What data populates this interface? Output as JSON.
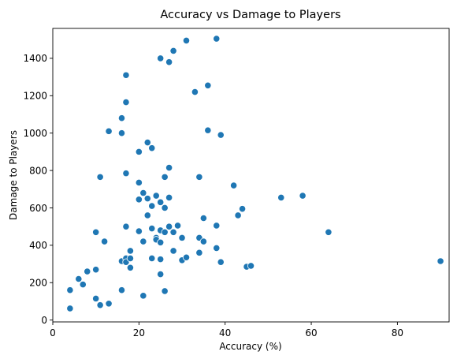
{
  "chart_data": {
    "type": "scatter",
    "title": "Accuracy vs Damage to Players",
    "xlabel": "Accuracy (%)",
    "ylabel": "Damage to Players",
    "xlim": [
      0,
      92
    ],
    "ylim": [
      -10,
      1560
    ],
    "xticks": [
      0,
      20,
      40,
      60,
      80
    ],
    "yticks": [
      0,
      200,
      400,
      600,
      800,
      1000,
      1200,
      1400
    ],
    "grid": false,
    "legend": "none",
    "marker_color": "#1f77b4",
    "points": [
      [
        4,
        160
      ],
      [
        4,
        62
      ],
      [
        6,
        220
      ],
      [
        7,
        190
      ],
      [
        8,
        260
      ],
      [
        10,
        270
      ],
      [
        10,
        115
      ],
      [
        10,
        470
      ],
      [
        11,
        80
      ],
      [
        11,
        765
      ],
      [
        12,
        420
      ],
      [
        13,
        1010
      ],
      [
        13,
        88
      ],
      [
        16,
        1080
      ],
      [
        16,
        1000
      ],
      [
        16,
        315
      ],
      [
        16,
        160
      ],
      [
        17,
        1310
      ],
      [
        17,
        1165
      ],
      [
        17,
        785
      ],
      [
        17,
        500
      ],
      [
        17,
        330
      ],
      [
        17,
        310
      ],
      [
        18,
        370
      ],
      [
        18,
        330
      ],
      [
        18,
        280
      ],
      [
        20,
        900
      ],
      [
        20,
        735
      ],
      [
        20,
        645
      ],
      [
        20,
        475
      ],
      [
        21,
        680
      ],
      [
        21,
        420
      ],
      [
        21,
        130
      ],
      [
        22,
        950
      ],
      [
        22,
        650
      ],
      [
        22,
        560
      ],
      [
        23,
        920
      ],
      [
        23,
        610
      ],
      [
        23,
        490
      ],
      [
        23,
        330
      ],
      [
        24,
        665
      ],
      [
        24,
        440
      ],
      [
        24,
        430
      ],
      [
        25,
        1400
      ],
      [
        25,
        630
      ],
      [
        25,
        480
      ],
      [
        25,
        415
      ],
      [
        25,
        325
      ],
      [
        25,
        245
      ],
      [
        26,
        765
      ],
      [
        26,
        600
      ],
      [
        26,
        470
      ],
      [
        26,
        155
      ],
      [
        27,
        1380
      ],
      [
        27,
        815
      ],
      [
        27,
        655
      ],
      [
        27,
        500
      ],
      [
        28,
        1440
      ],
      [
        28,
        470
      ],
      [
        28,
        370
      ],
      [
        29,
        505
      ],
      [
        30,
        440
      ],
      [
        30,
        320
      ],
      [
        31,
        1495
      ],
      [
        31,
        335
      ],
      [
        33,
        1220
      ],
      [
        34,
        765
      ],
      [
        34,
        440
      ],
      [
        34,
        360
      ],
      [
        35,
        545
      ],
      [
        35,
        420
      ],
      [
        36,
        1255
      ],
      [
        36,
        1015
      ],
      [
        38,
        1505
      ],
      [
        38,
        505
      ],
      [
        38,
        385
      ],
      [
        39,
        990
      ],
      [
        39,
        310
      ],
      [
        42,
        720
      ],
      [
        43,
        560
      ],
      [
        44,
        595
      ],
      [
        45,
        285
      ],
      [
        46,
        290
      ],
      [
        53,
        655
      ],
      [
        58,
        665
      ],
      [
        64,
        470
      ],
      [
        90,
        315
      ]
    ]
  }
}
